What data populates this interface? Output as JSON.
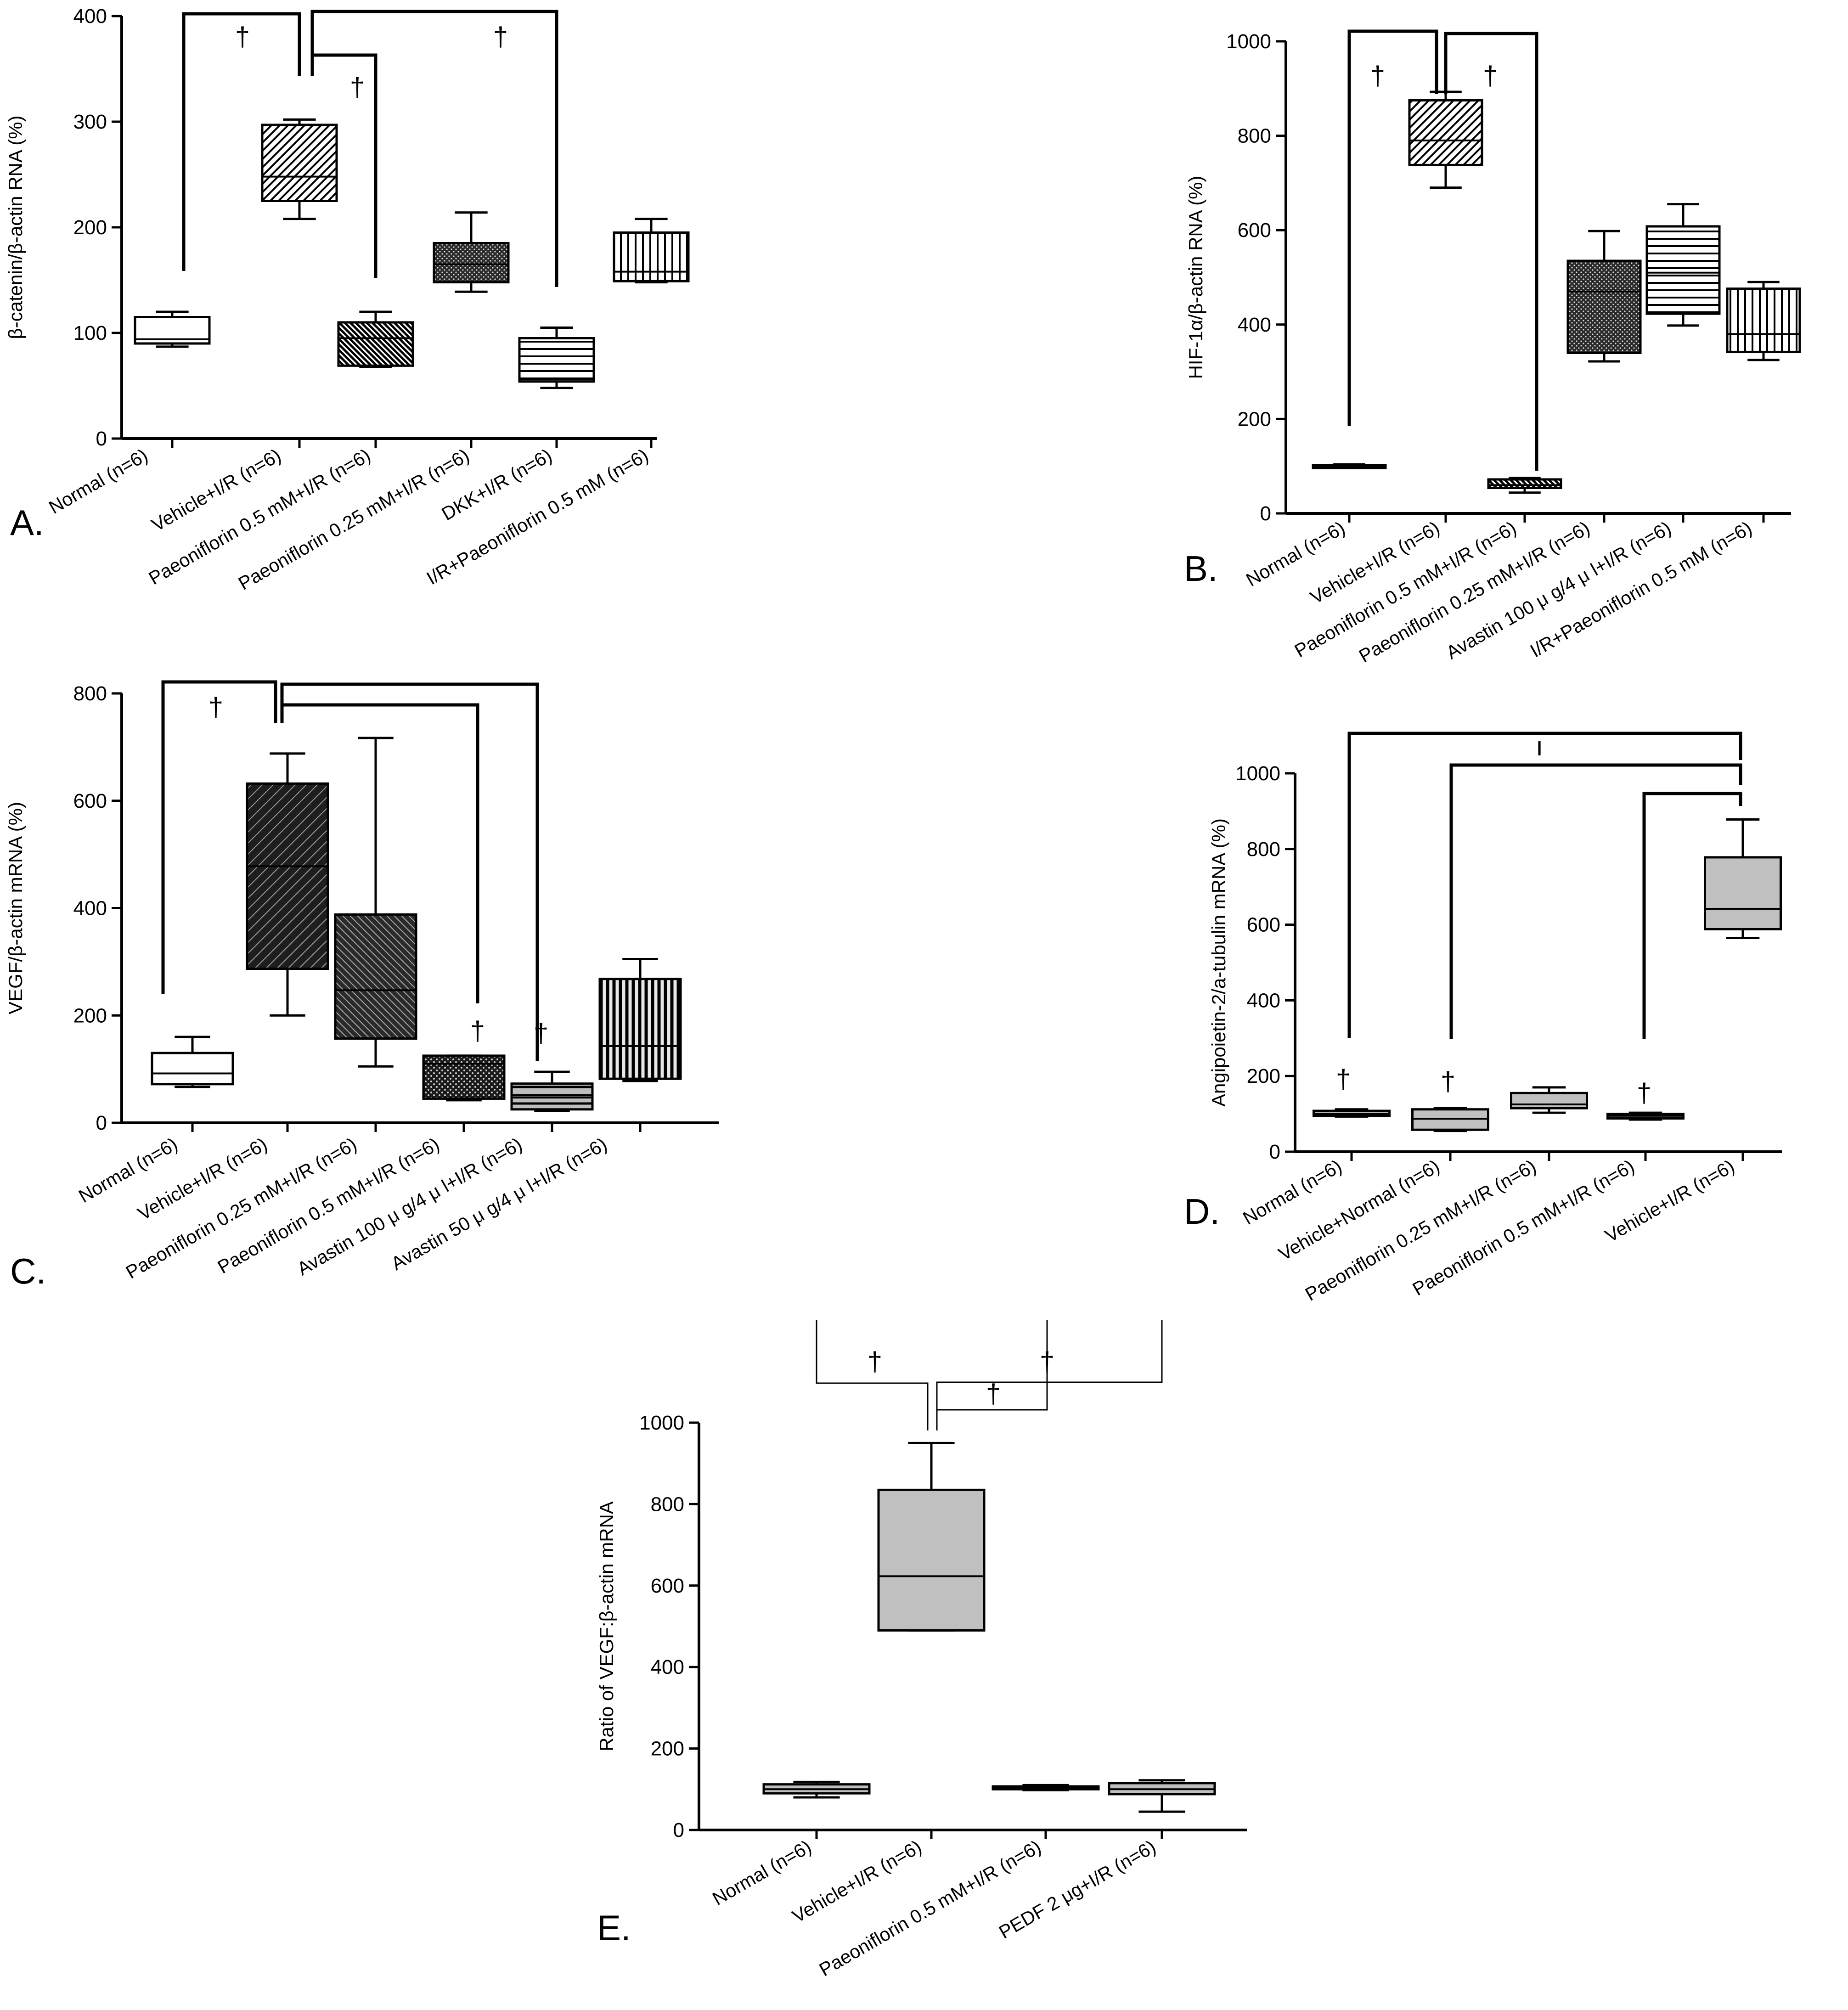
{
  "figure": {
    "panel_labels": [
      "A.",
      "B.",
      "C.",
      "D.",
      "E."
    ]
  },
  "chart_data": [
    {
      "panel": "A.",
      "type": "box",
      "ylabel": "β-catenin/β-actin RNA (%)",
      "ylim": [
        0,
        400
      ],
      "yticks": [
        0,
        100,
        200,
        300,
        400
      ],
      "categories": [
        "Normal (n=6)",
        "Vehicle+I/R (n=6)",
        "Paeoniflorin 0.5 mM+I/R (n=6)",
        "Paeoniflorin 0.25 mM+I/R (n=6)",
        "DKK+I/R (n=6)",
        "I/R+Paeoniflorin 0.5 mM (n=6)"
      ],
      "boxes": [
        {
          "min": 87,
          "q1": 90,
          "median": 94,
          "q3": 115,
          "max": 120
        },
        {
          "min": 208,
          "q1": 225,
          "median": 248,
          "q3": 297,
          "max": 302
        },
        {
          "min": 68,
          "q1": 69,
          "median": 95,
          "q3": 110,
          "max": 120
        },
        {
          "min": 139,
          "q1": 148,
          "median": 165,
          "q3": 185,
          "max": 214
        },
        {
          "min": 48,
          "q1": 54,
          "median": 56,
          "q3": 95,
          "max": 105
        },
        {
          "min": 148,
          "q1": 149,
          "median": 158,
          "q3": 195,
          "max": 208
        }
      ],
      "fills": [
        "plain",
        "diag-up",
        "diag-down-dense",
        "dots",
        "horizontal",
        "vertical"
      ],
      "significance_marks": [
        "†",
        "†",
        "†"
      ]
    },
    {
      "panel": "B.",
      "type": "box",
      "ylabel": "HIF-1α/β-actin RNA (%)",
      "ylim": [
        0,
        1000
      ],
      "yticks": [
        0,
        200,
        400,
        600,
        800,
        1000
      ],
      "categories": [
        "Normal (n=6)",
        "Vehicle+I/R (n=6)",
        "Paeoniflorin 0.5 mM+I/R (n=6)",
        "Paeoniflorin 0.25 mM+I/R (n=6)",
        "Avastin 100 μ  g/4 μ  l+I/R (n=6)",
        "I/R+Paeoniflorin 0.5 mM (n=6)"
      ],
      "boxes": [
        {
          "min": 97,
          "q1": 98,
          "median": 100,
          "q3": 102,
          "max": 104
        },
        {
          "min": 690,
          "q1": 738,
          "median": 790,
          "q3": 875,
          "max": 893
        },
        {
          "min": 44,
          "q1": 54,
          "median": 60,
          "q3": 72,
          "max": 75
        },
        {
          "min": 322,
          "q1": 340,
          "median": 470,
          "q3": 535,
          "max": 598
        },
        {
          "min": 398,
          "q1": 423,
          "median": 510,
          "q3": 608,
          "max": 655
        },
        {
          "min": 325,
          "q1": 342,
          "median": 380,
          "q3": 476,
          "max": 490
        }
      ],
      "fills": [
        "plain",
        "diag-up",
        "diag-down-dense",
        "dots",
        "horizontal",
        "vertical"
      ],
      "significance_marks": [
        "†",
        "†"
      ]
    },
    {
      "panel": "C.",
      "type": "box",
      "ylabel": "VEGF/β-actin mRNA (%)",
      "ylim": [
        0,
        800
      ],
      "yticks": [
        0,
        200,
        400,
        600,
        800
      ],
      "categories": [
        "Normal (n=6)",
        "Vehicle+I/R (n=6)",
        "Paeoniflorin 0.25 mM+I/R  (n=6)",
        "Paeoniflorin 0.5 mM+I/R  (n=6)",
        "Avastin 100 μ  g/4 μ  l+I/R  (n=6)",
        "Avastin 50 μ  g/4 μ  l+I/R  (n=6)"
      ],
      "boxes": [
        {
          "min": 67,
          "q1": 72,
          "median": 92,
          "q3": 130,
          "max": 160
        },
        {
          "min": 200,
          "q1": 287,
          "median": 478,
          "q3": 632,
          "max": 688
        },
        {
          "min": 105,
          "q1": 157,
          "median": 247,
          "q3": 388,
          "max": 717
        },
        {
          "min": 42,
          "q1": 45,
          "median": 110,
          "q3": 125,
          "max": 125
        },
        {
          "min": 22,
          "q1": 25,
          "median": 47,
          "q3": 73,
          "max": 95
        },
        {
          "min": 78,
          "q1": 82,
          "median": 143,
          "q3": 268,
          "max": 305
        }
      ],
      "fills": [
        "plain",
        "dark-diag",
        "dark-diag-down",
        "dark-dots",
        "light-horizontal",
        "dark-vertical"
      ],
      "significance_marks": [
        "†",
        "†",
        "†"
      ]
    },
    {
      "panel": "D.",
      "type": "box",
      "ylabel": "Angipoietin-2/a-tubulin mRNA (%)",
      "ylim": [
        0,
        1000
      ],
      "yticks": [
        0,
        200,
        400,
        600,
        800,
        1000
      ],
      "categories": [
        "Normal (n=6)",
        "Vehicle+Normal (n=6)",
        "Paeoniflorin 0.25 mM+I/R (n=6)",
        "Paeoniflorin 0.5 mM+I/R (n=6)",
        "Vehicle+I/R (n=6)"
      ],
      "boxes": [
        {
          "min": 93,
          "q1": 95,
          "median": 100,
          "q3": 108,
          "max": 112
        },
        {
          "min": 55,
          "q1": 58,
          "median": 87,
          "q3": 112,
          "max": 115
        },
        {
          "min": 103,
          "q1": 115,
          "median": 125,
          "q3": 155,
          "max": 170
        },
        {
          "min": 85,
          "q1": 88,
          "median": 95,
          "q3": 100,
          "max": 103
        },
        {
          "min": 565,
          "q1": 588,
          "median": 642,
          "q3": 778,
          "max": 878
        }
      ],
      "fills": [
        "gray",
        "gray",
        "gray",
        "gray",
        "gray"
      ],
      "significance_marks": [
        "†",
        "†",
        "†",
        "ı"
      ]
    },
    {
      "panel": "E.",
      "type": "box",
      "ylabel": "Ratio of VEGF:β-actin mRNA",
      "ylim": [
        0,
        1000
      ],
      "yticks": [
        0,
        200,
        400,
        600,
        800,
        1000
      ],
      "categories": [
        "Normal (n=6)",
        "Vehicle+I/R (n=6)",
        "Paeoniflorin 0.5 mM+I/R (n=6)",
        "PEDF 2 μg+I/R (n=6)"
      ],
      "boxes": [
        {
          "min": 80,
          "q1": 90,
          "median": 100,
          "q3": 112,
          "max": 118
        },
        {
          "min": 490,
          "q1": 490,
          "median": 623,
          "q3": 835,
          "max": 950
        },
        {
          "min": 98,
          "q1": 100,
          "median": 103,
          "q3": 107,
          "max": 110
        },
        {
          "min": 45,
          "q1": 88,
          "median": 100,
          "q3": 115,
          "max": 122
        }
      ],
      "fills": [
        "gray",
        "gray",
        "gray",
        "gray"
      ],
      "significance_marks": [
        "†",
        "†",
        "†"
      ]
    }
  ]
}
